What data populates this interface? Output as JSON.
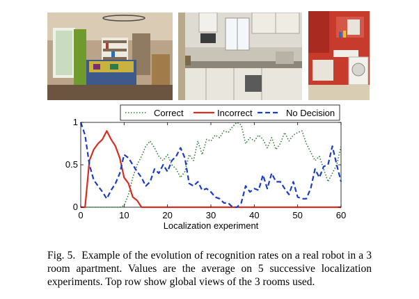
{
  "figure": {
    "photos": [
      {
        "name": "living-room-photo"
      },
      {
        "name": "kitchen-photo"
      },
      {
        "name": "bathroom-photo"
      }
    ],
    "caption": {
      "label": "Fig. 5.",
      "text": "Example of the evolution of recognition rates on a real robot in a 3 room apartment. Values are the average on 5 successive localization experiments. Top row show global views of the 3 rooms used."
    }
  },
  "chart_data": {
    "type": "line",
    "xlabel": "Localization experiment",
    "ylabel": "",
    "xlim": [
      0,
      60
    ],
    "ylim": [
      0,
      1
    ],
    "xticks": [
      0,
      10,
      20,
      30,
      40,
      50,
      60
    ],
    "xtick_labels": [
      "0",
      "10",
      "20",
      "30",
      "40",
      "50",
      "60"
    ],
    "yticks": [
      0,
      0.5,
      1
    ],
    "ytick_labels": [
      "0",
      "0.5",
      "1"
    ],
    "grid": false,
    "legend_placement": "top, above plot",
    "series": [
      {
        "name": "Correct",
        "color": "#2e7d32",
        "style": "dotted",
        "x": [
          0,
          1,
          2,
          3,
          4,
          5,
          6,
          7,
          8,
          9,
          10,
          11,
          12,
          13,
          14,
          15,
          16,
          17,
          18,
          19,
          20,
          21,
          22,
          23,
          24,
          25,
          26,
          27,
          28,
          29,
          30,
          31,
          32,
          33,
          34,
          35,
          36,
          37,
          38,
          39,
          40,
          41,
          42,
          43,
          44,
          45,
          46,
          47,
          48,
          49,
          50,
          51,
          52,
          53,
          54,
          55,
          56,
          57,
          58,
          59,
          60
        ],
        "y": [
          0,
          0,
          0,
          0,
          0,
          0,
          0,
          0,
          0,
          0,
          0.02,
          0.15,
          0.35,
          0.5,
          0.6,
          0.72,
          0.78,
          0.7,
          0.6,
          0.55,
          0.62,
          0.5,
          0.45,
          0.35,
          0.42,
          0.62,
          0.55,
          0.78,
          0.62,
          0.8,
          0.78,
          0.85,
          0.82,
          0.9,
          0.88,
          0.95,
          1.0,
          0.97,
          0.75,
          0.82,
          0.78,
          0.85,
          0.8,
          0.7,
          0.82,
          0.68,
          0.75,
          0.88,
          0.78,
          0.85,
          0.88,
          0.9,
          0.75,
          0.65,
          0.55,
          0.6,
          0.45,
          0.3,
          0.4,
          0.5,
          0.72
        ]
      },
      {
        "name": "Incorrect",
        "color": "#d62d20",
        "style": "solid",
        "x": [
          0,
          1,
          2,
          3,
          4,
          5,
          6,
          7,
          8,
          9,
          10,
          11,
          12,
          13,
          14,
          15,
          16,
          17,
          18,
          19,
          20,
          21,
          22,
          23,
          24,
          25,
          26,
          27,
          28,
          29,
          30,
          31,
          32,
          33,
          34,
          35,
          36,
          37,
          38,
          39,
          40,
          41,
          42,
          43,
          44,
          45,
          46,
          47,
          48,
          49,
          50,
          51,
          52,
          53,
          54,
          55,
          56,
          57,
          58,
          59,
          60
        ],
        "y": [
          0,
          0,
          0.55,
          0.68,
          0.75,
          0.8,
          0.9,
          0.8,
          0.72,
          0.58,
          0.35,
          0.28,
          0.12,
          0.08,
          0,
          0,
          0,
          0,
          0,
          0,
          0,
          0,
          0,
          0,
          0,
          0,
          0,
          0,
          0,
          0,
          0,
          0,
          0,
          0,
          0,
          0,
          0,
          0,
          0,
          0,
          0,
          0,
          0,
          0,
          0,
          0,
          0,
          0,
          0,
          0,
          0,
          0,
          0,
          0,
          0,
          0,
          0,
          0,
          0,
          0,
          0
        ]
      },
      {
        "name": "No Decision",
        "color": "#1a3cc8",
        "style": "dashed",
        "x": [
          0,
          1,
          2,
          3,
          4,
          5,
          6,
          7,
          8,
          9,
          10,
          11,
          12,
          13,
          14,
          15,
          16,
          17,
          18,
          19,
          20,
          21,
          22,
          23,
          24,
          25,
          26,
          27,
          28,
          29,
          30,
          31,
          32,
          33,
          34,
          35,
          36,
          37,
          38,
          39,
          40,
          41,
          42,
          43,
          44,
          45,
          46,
          47,
          48,
          49,
          50,
          51,
          52,
          53,
          54,
          55,
          56,
          57,
          58,
          59,
          60
        ],
        "y": [
          1.0,
          0.85,
          0.5,
          0.32,
          0.25,
          0.18,
          0.1,
          0.2,
          0.28,
          0.4,
          0.62,
          0.58,
          0.5,
          0.42,
          0.35,
          0.25,
          0.3,
          0.45,
          0.4,
          0.5,
          0.42,
          0.55,
          0.6,
          0.7,
          0.58,
          0.28,
          0.25,
          0.3,
          0.2,
          0.22,
          0.18,
          0.12,
          0.1,
          0.05,
          0.05,
          0.0,
          0.0,
          0.05,
          0.25,
          0.18,
          0.22,
          0.2,
          0.38,
          0.22,
          0.4,
          0.3,
          0.3,
          0.22,
          0.15,
          0.3,
          0.12,
          0.1,
          0.1,
          0.22,
          0.45,
          0.35,
          0.48,
          0.5,
          0.72,
          0.5,
          0.3
        ]
      }
    ]
  }
}
